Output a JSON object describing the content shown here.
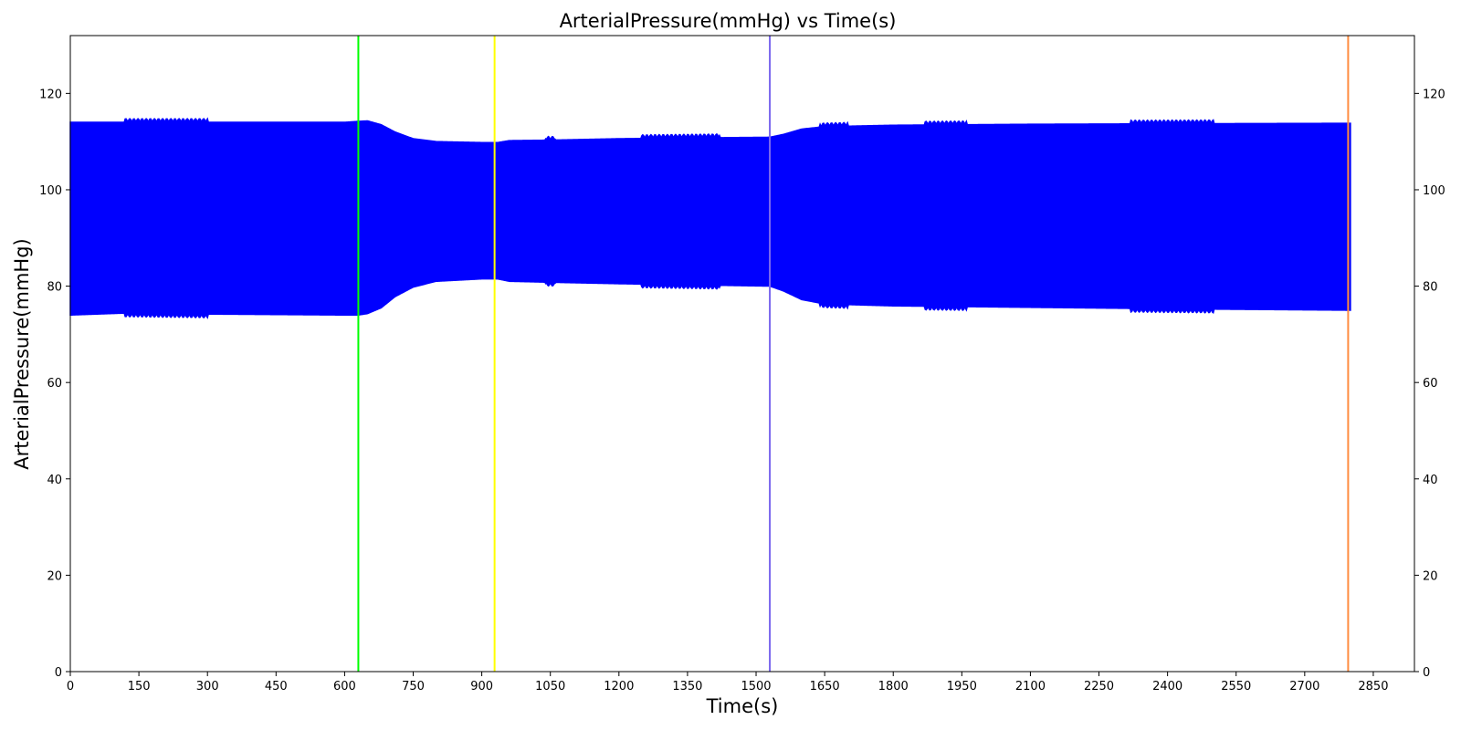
{
  "chart_data": {
    "type": "area",
    "title": "ArterialPressure(mmHg) vs Time(s)",
    "xlabel": "Time(s)",
    "ylabel": "ArterialPressure(mmHg)",
    "xlim": [
      0,
      2940
    ],
    "ylim": [
      0,
      132
    ],
    "x_ticks": [
      "0",
      "150",
      "300",
      "450",
      "600",
      "750",
      "900",
      "1050",
      "1200",
      "1350",
      "1500",
      "1650",
      "1800",
      "1950",
      "2100",
      "2250",
      "2400",
      "2550",
      "2700",
      "2850"
    ],
    "y_ticks": [
      "0",
      "20",
      "40",
      "60",
      "80",
      "100",
      "120"
    ],
    "grid": false,
    "series": [
      {
        "color": "#0000ff",
        "upper_envelope": [
          {
            "x": 0,
            "y": 114.0
          },
          {
            "x": 120,
            "y": 114.0
          },
          {
            "x": 300,
            "y": 114.0
          },
          {
            "x": 600,
            "y": 114.0
          },
          {
            "x": 630,
            "y": 114.2
          },
          {
            "x": 650,
            "y": 114.3
          },
          {
            "x": 680,
            "y": 113.5
          },
          {
            "x": 710,
            "y": 112.0
          },
          {
            "x": 750,
            "y": 110.6
          },
          {
            "x": 800,
            "y": 110.0
          },
          {
            "x": 900,
            "y": 109.8
          },
          {
            "x": 935,
            "y": 109.8
          },
          {
            "x": 960,
            "y": 110.2
          },
          {
            "x": 1050,
            "y": 110.3
          },
          {
            "x": 1200,
            "y": 110.6
          },
          {
            "x": 1400,
            "y": 110.8
          },
          {
            "x": 1530,
            "y": 110.9
          },
          {
            "x": 1560,
            "y": 111.5
          },
          {
            "x": 1600,
            "y": 112.6
          },
          {
            "x": 1650,
            "y": 113.1
          },
          {
            "x": 1800,
            "y": 113.4
          },
          {
            "x": 2100,
            "y": 113.6
          },
          {
            "x": 2400,
            "y": 113.7
          },
          {
            "x": 2800,
            "y": 113.8
          }
        ],
        "lower_envelope": [
          {
            "x": 0,
            "y": 74.0
          },
          {
            "x": 120,
            "y": 74.4
          },
          {
            "x": 300,
            "y": 74.2
          },
          {
            "x": 600,
            "y": 74.0
          },
          {
            "x": 630,
            "y": 74.0
          },
          {
            "x": 650,
            "y": 74.3
          },
          {
            "x": 680,
            "y": 75.5
          },
          {
            "x": 710,
            "y": 77.8
          },
          {
            "x": 750,
            "y": 79.8
          },
          {
            "x": 800,
            "y": 81.0
          },
          {
            "x": 900,
            "y": 81.5
          },
          {
            "x": 935,
            "y": 81.5
          },
          {
            "x": 960,
            "y": 81.0
          },
          {
            "x": 1050,
            "y": 80.8
          },
          {
            "x": 1200,
            "y": 80.5
          },
          {
            "x": 1400,
            "y": 80.2
          },
          {
            "x": 1530,
            "y": 80.0
          },
          {
            "x": 1560,
            "y": 79.0
          },
          {
            "x": 1600,
            "y": 77.2
          },
          {
            "x": 1650,
            "y": 76.3
          },
          {
            "x": 1800,
            "y": 75.9
          },
          {
            "x": 2100,
            "y": 75.6
          },
          {
            "x": 2400,
            "y": 75.3
          },
          {
            "x": 2800,
            "y": 75.0
          }
        ],
        "oscillation_bursts": [
          [
            120,
            300
          ],
          [
            1040,
            1060
          ],
          [
            1250,
            1420
          ],
          [
            1640,
            1700
          ],
          [
            1870,
            1960
          ],
          [
            2320,
            2500
          ]
        ]
      }
    ],
    "vertical_lines": [
      {
        "x": 630,
        "color": "#00ff00"
      },
      {
        "x": 928,
        "color": "#ffff00"
      },
      {
        "x": 1530,
        "color": "#7b68ee"
      },
      {
        "x": 2795,
        "color": "#ff8c40"
      }
    ]
  }
}
